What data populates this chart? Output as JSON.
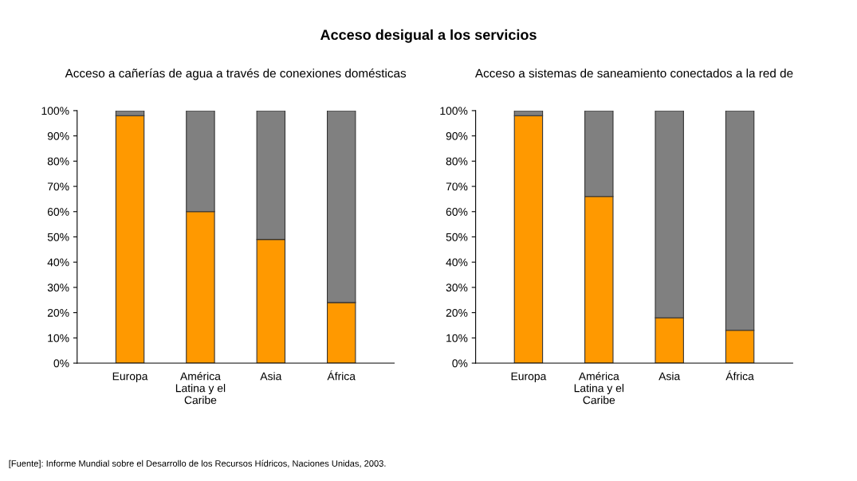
{
  "chart_data": [
    {
      "type": "bar",
      "stacked": true,
      "title": "Acceso a cañerías de agua a través de conexiones domésticas",
      "categories": [
        "Europa",
        "América\nLatina y el\nCaribe",
        "Asia",
        "África"
      ],
      "series": [
        {
          "color": "#ff9900",
          "values": [
            98,
            60,
            49,
            24
          ]
        },
        {
          "color": "#808080",
          "values": [
            2,
            40,
            51,
            76
          ]
        }
      ],
      "ylim": [
        0,
        100
      ],
      "yticks": [
        {
          "value": 0,
          "label": "0%"
        },
        {
          "value": 10,
          "label": "10%"
        },
        {
          "value": 20,
          "label": "20%"
        },
        {
          "value": 30,
          "label": "30%"
        },
        {
          "value": 40,
          "label": "40%"
        },
        {
          "value": 50,
          "label": "50%"
        },
        {
          "value": 60,
          "label": "60%"
        },
        {
          "value": 70,
          "label": "70%"
        },
        {
          "value": 80,
          "label": "80%"
        },
        {
          "value": 90,
          "label": "90%"
        },
        {
          "value": 100,
          "label": "100%"
        }
      ],
      "annotations": [
        "Acceso desigual a los servicios",
        "[Fuente]: Informe Mundial sobre el Desarrollo de los Recursos Hídricos, Naciones Unidas, 2003."
      ]
    },
    {
      "type": "bar",
      "stacked": true,
      "title": "Acceso a sistemas de saneamiento conectados a la red de",
      "categories": [
        "Europa",
        "América\nLatina y el\nCaribe",
        "Asia",
        "África"
      ],
      "series": [
        {
          "color": "#ff9900",
          "values": [
            98,
            66,
            18,
            13
          ]
        },
        {
          "color": "#808080",
          "values": [
            2,
            34,
            82,
            87
          ]
        }
      ],
      "ylim": [
        0,
        100
      ],
      "yticks": [
        {
          "value": 0,
          "label": "0%"
        },
        {
          "value": 10,
          "label": "10%"
        },
        {
          "value": 20,
          "label": "20%"
        },
        {
          "value": 30,
          "label": "30%"
        },
        {
          "value": 40,
          "label": "40%"
        },
        {
          "value": 50,
          "label": "50%"
        },
        {
          "value": 60,
          "label": "60%"
        },
        {
          "value": 70,
          "label": "70%"
        },
        {
          "value": 80,
          "label": "80%"
        },
        {
          "value": 90,
          "label": "90%"
        },
        {
          "value": 100,
          "label": "100%"
        }
      ]
    }
  ]
}
